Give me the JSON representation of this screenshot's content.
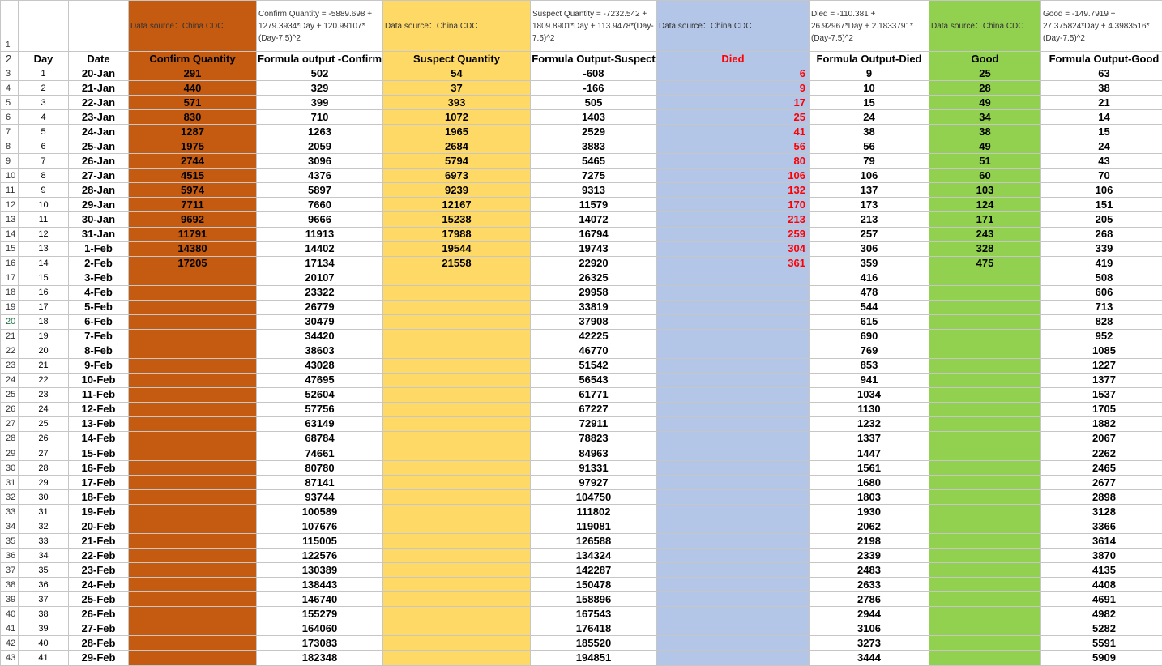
{
  "header": {
    "row1_num": "1",
    "row2_num": "2",
    "source_confirm": "Data source：China CDC",
    "formula_confirm": "Confirm Quantity = -5889.698 + 1279.3934*Day + 120.99107*(Day-7.5)^2",
    "source_suspect": "Data source：China CDC",
    "formula_suspect": "Suspect Quantity = -7232.542 + 1809.8901*Day + 113.9478*(Day-7.5)^2",
    "source_died": "Data source：China CDC",
    "formula_died": "Died = -110.381 + 26.92967*Day + 2.1833791*(Day-7.5)^2",
    "source_good": "Data source：China CDC",
    "formula_good": "Good = -149.7919 + 27.375824*Day + 4.3983516*(Day-7.5)^2",
    "columns": [
      "Day",
      "Date",
      "Confirm Quantity",
      "Formula output -Confirm",
      "Suspect Quantity",
      "Formula Output-Suspect",
      "Died",
      "Formula Output-Died",
      "Good",
      "Formula Output-Good"
    ]
  },
  "rows": [
    {
      "rn": "3",
      "day": "1",
      "date": "20-Jan",
      "confirm": "291",
      "f_confirm": "502",
      "suspect": "54",
      "f_suspect": "-608",
      "died": "6",
      "f_died": "9",
      "good": "25",
      "f_good": "63"
    },
    {
      "rn": "4",
      "day": "2",
      "date": "21-Jan",
      "confirm": "440",
      "f_confirm": "329",
      "suspect": "37",
      "f_suspect": "-166",
      "died": "9",
      "f_died": "10",
      "good": "28",
      "f_good": "38"
    },
    {
      "rn": "5",
      "day": "3",
      "date": "22-Jan",
      "confirm": "571",
      "f_confirm": "399",
      "suspect": "393",
      "f_suspect": "505",
      "died": "17",
      "f_died": "15",
      "good": "49",
      "f_good": "21"
    },
    {
      "rn": "6",
      "day": "4",
      "date": "23-Jan",
      "confirm": "830",
      "f_confirm": "710",
      "suspect": "1072",
      "f_suspect": "1403",
      "died": "25",
      "f_died": "24",
      "good": "34",
      "f_good": "14"
    },
    {
      "rn": "7",
      "day": "5",
      "date": "24-Jan",
      "confirm": "1287",
      "f_confirm": "1263",
      "suspect": "1965",
      "f_suspect": "2529",
      "died": "41",
      "f_died": "38",
      "good": "38",
      "f_good": "15"
    },
    {
      "rn": "8",
      "day": "6",
      "date": "25-Jan",
      "confirm": "1975",
      "f_confirm": "2059",
      "suspect": "2684",
      "f_suspect": "3883",
      "died": "56",
      "f_died": "56",
      "good": "49",
      "f_good": "24"
    },
    {
      "rn": "9",
      "day": "7",
      "date": "26-Jan",
      "confirm": "2744",
      "f_confirm": "3096",
      "suspect": "5794",
      "f_suspect": "5465",
      "died": "80",
      "f_died": "79",
      "good": "51",
      "f_good": "43"
    },
    {
      "rn": "10",
      "day": "8",
      "date": "27-Jan",
      "confirm": "4515",
      "f_confirm": "4376",
      "suspect": "6973",
      "f_suspect": "7275",
      "died": "106",
      "f_died": "106",
      "good": "60",
      "f_good": "70"
    },
    {
      "rn": "11",
      "day": "9",
      "date": "28-Jan",
      "confirm": "5974",
      "f_confirm": "5897",
      "suspect": "9239",
      "f_suspect": "9313",
      "died": "132",
      "f_died": "137",
      "good": "103",
      "f_good": "106"
    },
    {
      "rn": "12",
      "day": "10",
      "date": "29-Jan",
      "confirm": "7711",
      "f_confirm": "7660",
      "suspect": "12167",
      "f_suspect": "11579",
      "died": "170",
      "f_died": "173",
      "good": "124",
      "f_good": "151"
    },
    {
      "rn": "13",
      "day": "11",
      "date": "30-Jan",
      "confirm": "9692",
      "f_confirm": "9666",
      "suspect": "15238",
      "f_suspect": "14072",
      "died": "213",
      "f_died": "213",
      "good": "171",
      "f_good": "205"
    },
    {
      "rn": "14",
      "day": "12",
      "date": "31-Jan",
      "confirm": "11791",
      "f_confirm": "11913",
      "suspect": "17988",
      "f_suspect": "16794",
      "died": "259",
      "f_died": "257",
      "good": "243",
      "f_good": "268"
    },
    {
      "rn": "15",
      "day": "13",
      "date": "1-Feb",
      "confirm": "14380",
      "f_confirm": "14402",
      "suspect": "19544",
      "f_suspect": "19743",
      "died": "304",
      "f_died": "306",
      "good": "328",
      "f_good": "339"
    },
    {
      "rn": "16",
      "day": "14",
      "date": "2-Feb",
      "confirm": "17205",
      "f_confirm": "17134",
      "suspect": "21558",
      "f_suspect": "22920",
      "died": "361",
      "f_died": "359",
      "good": "475",
      "f_good": "419"
    },
    {
      "rn": "17",
      "day": "15",
      "date": "3-Feb",
      "confirm": "",
      "f_confirm": "20107",
      "suspect": "",
      "f_suspect": "26325",
      "died": "",
      "f_died": "416",
      "good": "",
      "f_good": "508"
    },
    {
      "rn": "18",
      "day": "16",
      "date": "4-Feb",
      "confirm": "",
      "f_confirm": "23322",
      "suspect": "",
      "f_suspect": "29958",
      "died": "",
      "f_died": "478",
      "good": "",
      "f_good": "606"
    },
    {
      "rn": "19",
      "day": "17",
      "date": "5-Feb",
      "confirm": "",
      "f_confirm": "26779",
      "suspect": "",
      "f_suspect": "33819",
      "died": "",
      "f_died": "544",
      "good": "",
      "f_good": "713"
    },
    {
      "rn": "20",
      "day": "18",
      "date": "6-Feb",
      "confirm": "",
      "f_confirm": "30479",
      "suspect": "",
      "f_suspect": "37908",
      "died": "",
      "f_died": "615",
      "good": "",
      "f_good": "828"
    },
    {
      "rn": "21",
      "day": "19",
      "date": "7-Feb",
      "confirm": "",
      "f_confirm": "34420",
      "suspect": "",
      "f_suspect": "42225",
      "died": "",
      "f_died": "690",
      "good": "",
      "f_good": "952"
    },
    {
      "rn": "22",
      "day": "20",
      "date": "8-Feb",
      "confirm": "",
      "f_confirm": "38603",
      "suspect": "",
      "f_suspect": "46770",
      "died": "",
      "f_died": "769",
      "good": "",
      "f_good": "1085"
    },
    {
      "rn": "23",
      "day": "21",
      "date": "9-Feb",
      "confirm": "",
      "f_confirm": "43028",
      "suspect": "",
      "f_suspect": "51542",
      "died": "",
      "f_died": "853",
      "good": "",
      "f_good": "1227"
    },
    {
      "rn": "24",
      "day": "22",
      "date": "10-Feb",
      "confirm": "",
      "f_confirm": "47695",
      "suspect": "",
      "f_suspect": "56543",
      "died": "",
      "f_died": "941",
      "good": "",
      "f_good": "1377"
    },
    {
      "rn": "25",
      "day": "23",
      "date": "11-Feb",
      "confirm": "",
      "f_confirm": "52604",
      "suspect": "",
      "f_suspect": "61771",
      "died": "",
      "f_died": "1034",
      "good": "",
      "f_good": "1537"
    },
    {
      "rn": "26",
      "day": "24",
      "date": "12-Feb",
      "confirm": "",
      "f_confirm": "57756",
      "suspect": "",
      "f_suspect": "67227",
      "died": "",
      "f_died": "1130",
      "good": "",
      "f_good": "1705"
    },
    {
      "rn": "27",
      "day": "25",
      "date": "13-Feb",
      "confirm": "",
      "f_confirm": "63149",
      "suspect": "",
      "f_suspect": "72911",
      "died": "",
      "f_died": "1232",
      "good": "",
      "f_good": "1882"
    },
    {
      "rn": "28",
      "day": "26",
      "date": "14-Feb",
      "confirm": "",
      "f_confirm": "68784",
      "suspect": "",
      "f_suspect": "78823",
      "died": "",
      "f_died": "1337",
      "good": "",
      "f_good": "2067"
    },
    {
      "rn": "29",
      "day": "27",
      "date": "15-Feb",
      "confirm": "",
      "f_confirm": "74661",
      "suspect": "",
      "f_suspect": "84963",
      "died": "",
      "f_died": "1447",
      "good": "",
      "f_good": "2262"
    },
    {
      "rn": "30",
      "day": "28",
      "date": "16-Feb",
      "confirm": "",
      "f_confirm": "80780",
      "suspect": "",
      "f_suspect": "91331",
      "died": "",
      "f_died": "1561",
      "good": "",
      "f_good": "2465"
    },
    {
      "rn": "31",
      "day": "29",
      "date": "17-Feb",
      "confirm": "",
      "f_confirm": "87141",
      "suspect": "",
      "f_suspect": "97927",
      "died": "",
      "f_died": "1680",
      "good": "",
      "f_good": "2677"
    },
    {
      "rn": "32",
      "day": "30",
      "date": "18-Feb",
      "confirm": "",
      "f_confirm": "93744",
      "suspect": "",
      "f_suspect": "104750",
      "died": "",
      "f_died": "1803",
      "good": "",
      "f_good": "2898"
    },
    {
      "rn": "33",
      "day": "31",
      "date": "19-Feb",
      "confirm": "",
      "f_confirm": "100589",
      "suspect": "",
      "f_suspect": "111802",
      "died": "",
      "f_died": "1930",
      "good": "",
      "f_good": "3128"
    },
    {
      "rn": "34",
      "day": "32",
      "date": "20-Feb",
      "confirm": "",
      "f_confirm": "107676",
      "suspect": "",
      "f_suspect": "119081",
      "died": "",
      "f_died": "2062",
      "good": "",
      "f_good": "3366"
    },
    {
      "rn": "35",
      "day": "33",
      "date": "21-Feb",
      "confirm": "",
      "f_confirm": "115005",
      "suspect": "",
      "f_suspect": "126588",
      "died": "",
      "f_died": "2198",
      "good": "",
      "f_good": "3614"
    },
    {
      "rn": "36",
      "day": "34",
      "date": "22-Feb",
      "confirm": "",
      "f_confirm": "122576",
      "suspect": "",
      "f_suspect": "134324",
      "died": "",
      "f_died": "2339",
      "good": "",
      "f_good": "3870"
    },
    {
      "rn": "37",
      "day": "35",
      "date": "23-Feb",
      "confirm": "",
      "f_confirm": "130389",
      "suspect": "",
      "f_suspect": "142287",
      "died": "",
      "f_died": "2483",
      "good": "",
      "f_good": "4135"
    },
    {
      "rn": "38",
      "day": "36",
      "date": "24-Feb",
      "confirm": "",
      "f_confirm": "138443",
      "suspect": "",
      "f_suspect": "150478",
      "died": "",
      "f_died": "2633",
      "good": "",
      "f_good": "4408"
    },
    {
      "rn": "39",
      "day": "37",
      "date": "25-Feb",
      "confirm": "",
      "f_confirm": "146740",
      "suspect": "",
      "f_suspect": "158896",
      "died": "",
      "f_died": "2786",
      "good": "",
      "f_good": "4691"
    },
    {
      "rn": "40",
      "day": "38",
      "date": "26-Feb",
      "confirm": "",
      "f_confirm": "155279",
      "suspect": "",
      "f_suspect": "167543",
      "died": "",
      "f_died": "2944",
      "good": "",
      "f_good": "4982"
    },
    {
      "rn": "41",
      "day": "39",
      "date": "27-Feb",
      "confirm": "",
      "f_confirm": "164060",
      "suspect": "",
      "f_suspect": "176418",
      "died": "",
      "f_died": "3106",
      "good": "",
      "f_good": "5282"
    },
    {
      "rn": "42",
      "day": "40",
      "date": "28-Feb",
      "confirm": "",
      "f_confirm": "173083",
      "suspect": "",
      "f_suspect": "185520",
      "died": "",
      "f_died": "3273",
      "good": "",
      "f_good": "5591"
    },
    {
      "rn": "43",
      "day": "41",
      "date": "29-Feb",
      "confirm": "",
      "f_confirm": "182348",
      "suspect": "",
      "f_suspect": "194851",
      "died": "",
      "f_died": "3444",
      "good": "",
      "f_good": "5909"
    }
  ],
  "colors": {
    "confirm_fill": "#c55a11",
    "suspect_fill": "#ffd966",
    "died_fill": "#b4c6e7",
    "good_fill": "#92d050",
    "died_text": "#ff0000"
  },
  "selected_row": "20"
}
